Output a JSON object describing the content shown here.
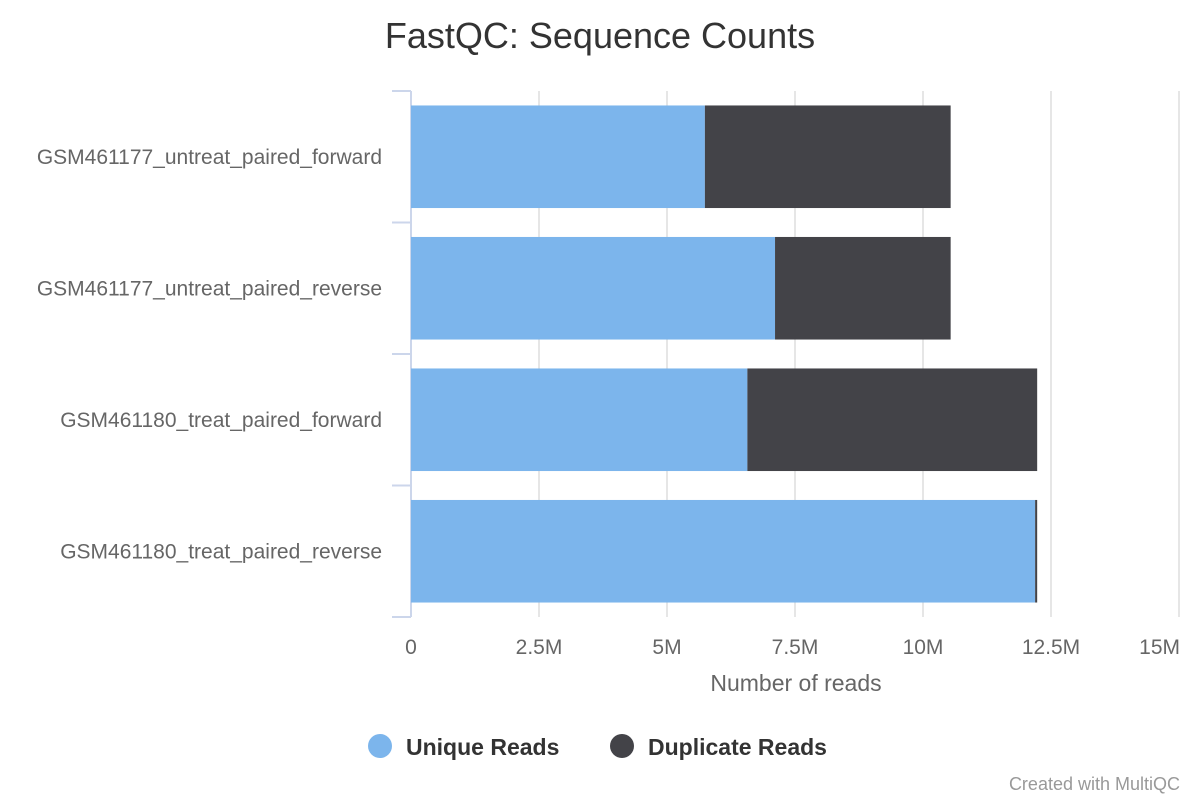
{
  "chart_data": {
    "type": "bar",
    "orientation": "horizontal",
    "stacked": true,
    "title": "FastQC: Sequence Counts",
    "xlabel": "Number of reads",
    "ylabel": "",
    "xlim": [
      0,
      15000000
    ],
    "x_ticks": [
      0,
      2500000,
      5000000,
      7500000,
      10000000,
      12500000,
      15000000
    ],
    "x_tick_labels": [
      "0",
      "2.5M",
      "5M",
      "7.5M",
      "10M",
      "12.5M",
      "15M"
    ],
    "grid": "vertical",
    "legend_position": "bottom-center",
    "categories": [
      "GSM461177_untreat_paired_forward",
      "GSM461177_untreat_paired_reverse",
      "GSM461180_treat_paired_forward",
      "GSM461180_treat_paired_reverse"
    ],
    "series": [
      {
        "name": "Unique Reads",
        "color": "#7cb5ec",
        "values": [
          5740000,
          7110000,
          6570000,
          12190000
        ]
      },
      {
        "name": "Duplicate Reads",
        "color": "#434348",
        "values": [
          4800000,
          3430000,
          5660000,
          40000
        ]
      }
    ],
    "credit": "Created with MultiQC"
  }
}
